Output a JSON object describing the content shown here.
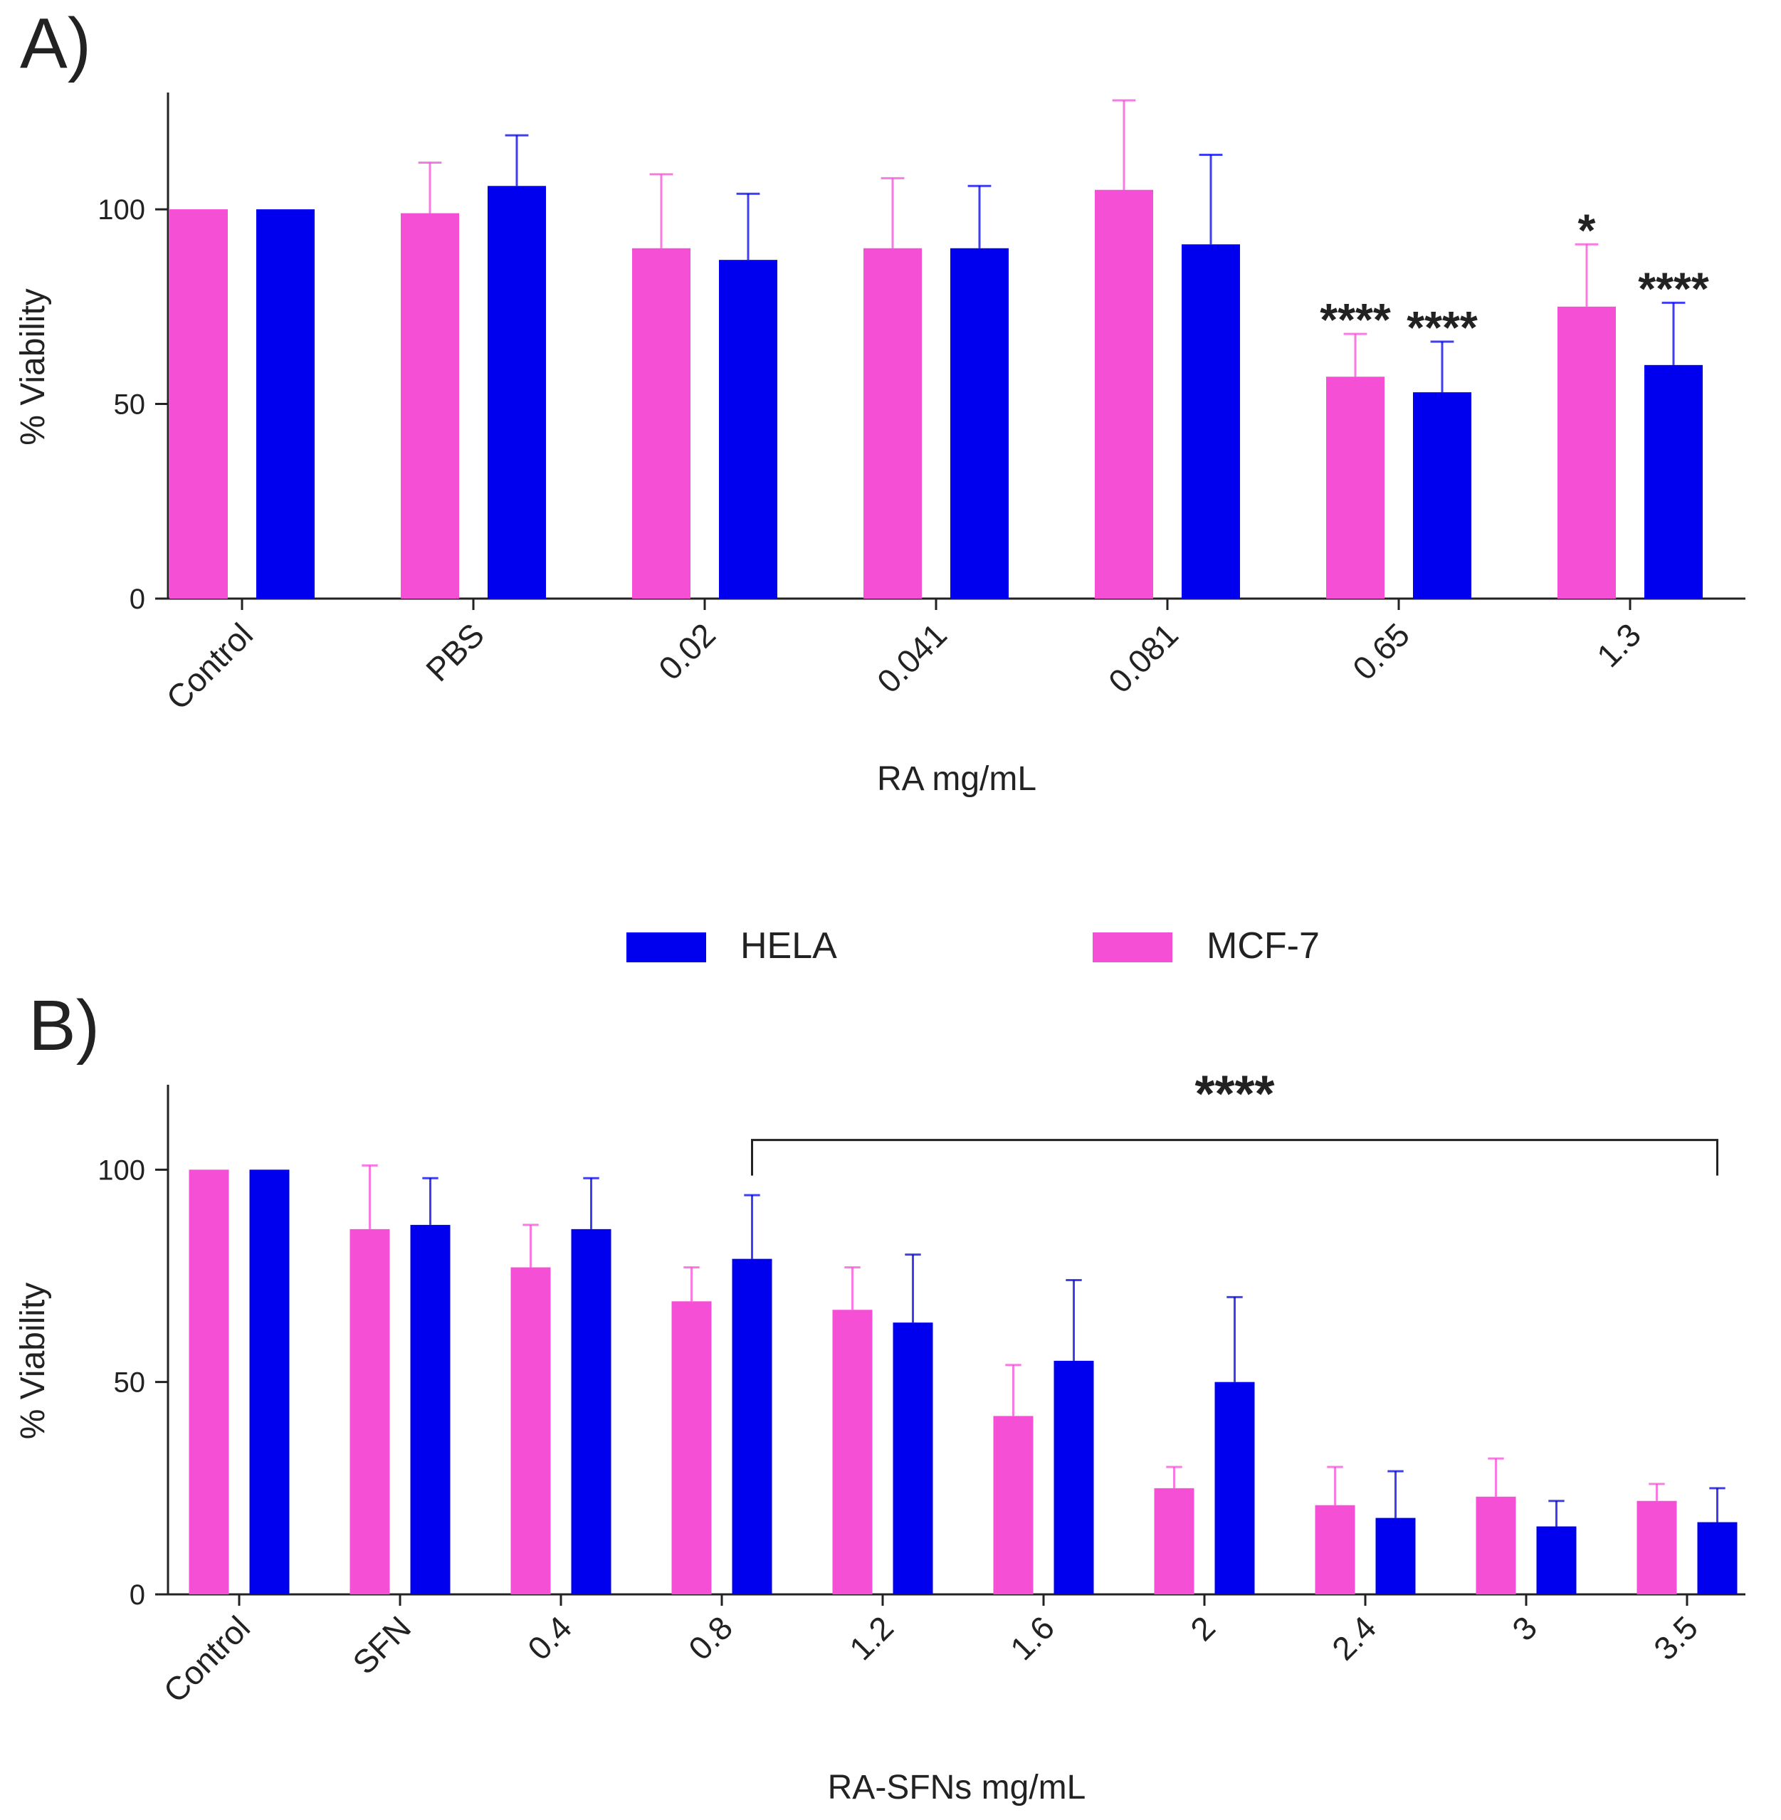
{
  "colors": {
    "mcf7": "#F54FD6",
    "hela": "#0000EE",
    "axis": "#222222"
  },
  "legend": {
    "items": [
      {
        "label": "HELA",
        "series": "hela"
      },
      {
        "label": "MCF-7",
        "series": "mcf7"
      }
    ]
  },
  "chart_data": [
    {
      "type": "bar",
      "panel_label": "A)",
      "title": "",
      "xlabel": "RA mg/mL",
      "ylabel": "% Viability",
      "ylim": [
        0,
        130
      ],
      "yticks": [
        0,
        50,
        100
      ],
      "categories": [
        "Control",
        "PBS",
        "0.02",
        "0.041",
        "0.081",
        "0.65",
        "1.3"
      ],
      "series": [
        {
          "name": "MCF-7",
          "color_key": "mcf7",
          "values": [
            100,
            99,
            90,
            90,
            105,
            57,
            75
          ],
          "errors": [
            0,
            13,
            19,
            18,
            23,
            11,
            16
          ]
        },
        {
          "name": "HELA",
          "color_key": "hela",
          "values": [
            100,
            106,
            87,
            90,
            91,
            53,
            60
          ],
          "errors": [
            0,
            13,
            17,
            16,
            23,
            13,
            16
          ]
        }
      ],
      "annotations": [
        {
          "text": "****",
          "category": 5,
          "series": 0
        },
        {
          "text": "****",
          "category": 5,
          "series": 1
        },
        {
          "text": "*",
          "category": 6,
          "series": 0
        },
        {
          "text": "****",
          "category": 6,
          "series": 1
        }
      ]
    },
    {
      "type": "bar",
      "panel_label": "B)",
      "title": "",
      "xlabel": "RA-SFNs  mg/mL",
      "ylabel": "% Viability",
      "ylim": [
        0,
        120
      ],
      "yticks": [
        0,
        50,
        100
      ],
      "categories": [
        "Control",
        "SFN",
        "0.4",
        "0.8",
        "1.2",
        "1.6",
        "2",
        "2.4",
        "3",
        "3.5"
      ],
      "series": [
        {
          "name": "MCF-7",
          "color_key": "mcf7",
          "values": [
            100,
            86,
            77,
            69,
            67,
            42,
            25,
            21,
            23,
            22
          ],
          "errors": [
            0,
            15,
            10,
            8,
            10,
            12,
            5,
            9,
            9,
            4
          ]
        },
        {
          "name": "HELA",
          "color_key": "hela",
          "values": [
            100,
            87,
            86,
            79,
            64,
            55,
            50,
            18,
            16,
            17
          ],
          "errors": [
            0,
            11,
            12,
            15,
            16,
            19,
            20,
            11,
            6,
            8
          ]
        }
      ],
      "bracket": {
        "text": "****",
        "from_category": 3,
        "to_category": 9,
        "value": 107
      }
    }
  ]
}
